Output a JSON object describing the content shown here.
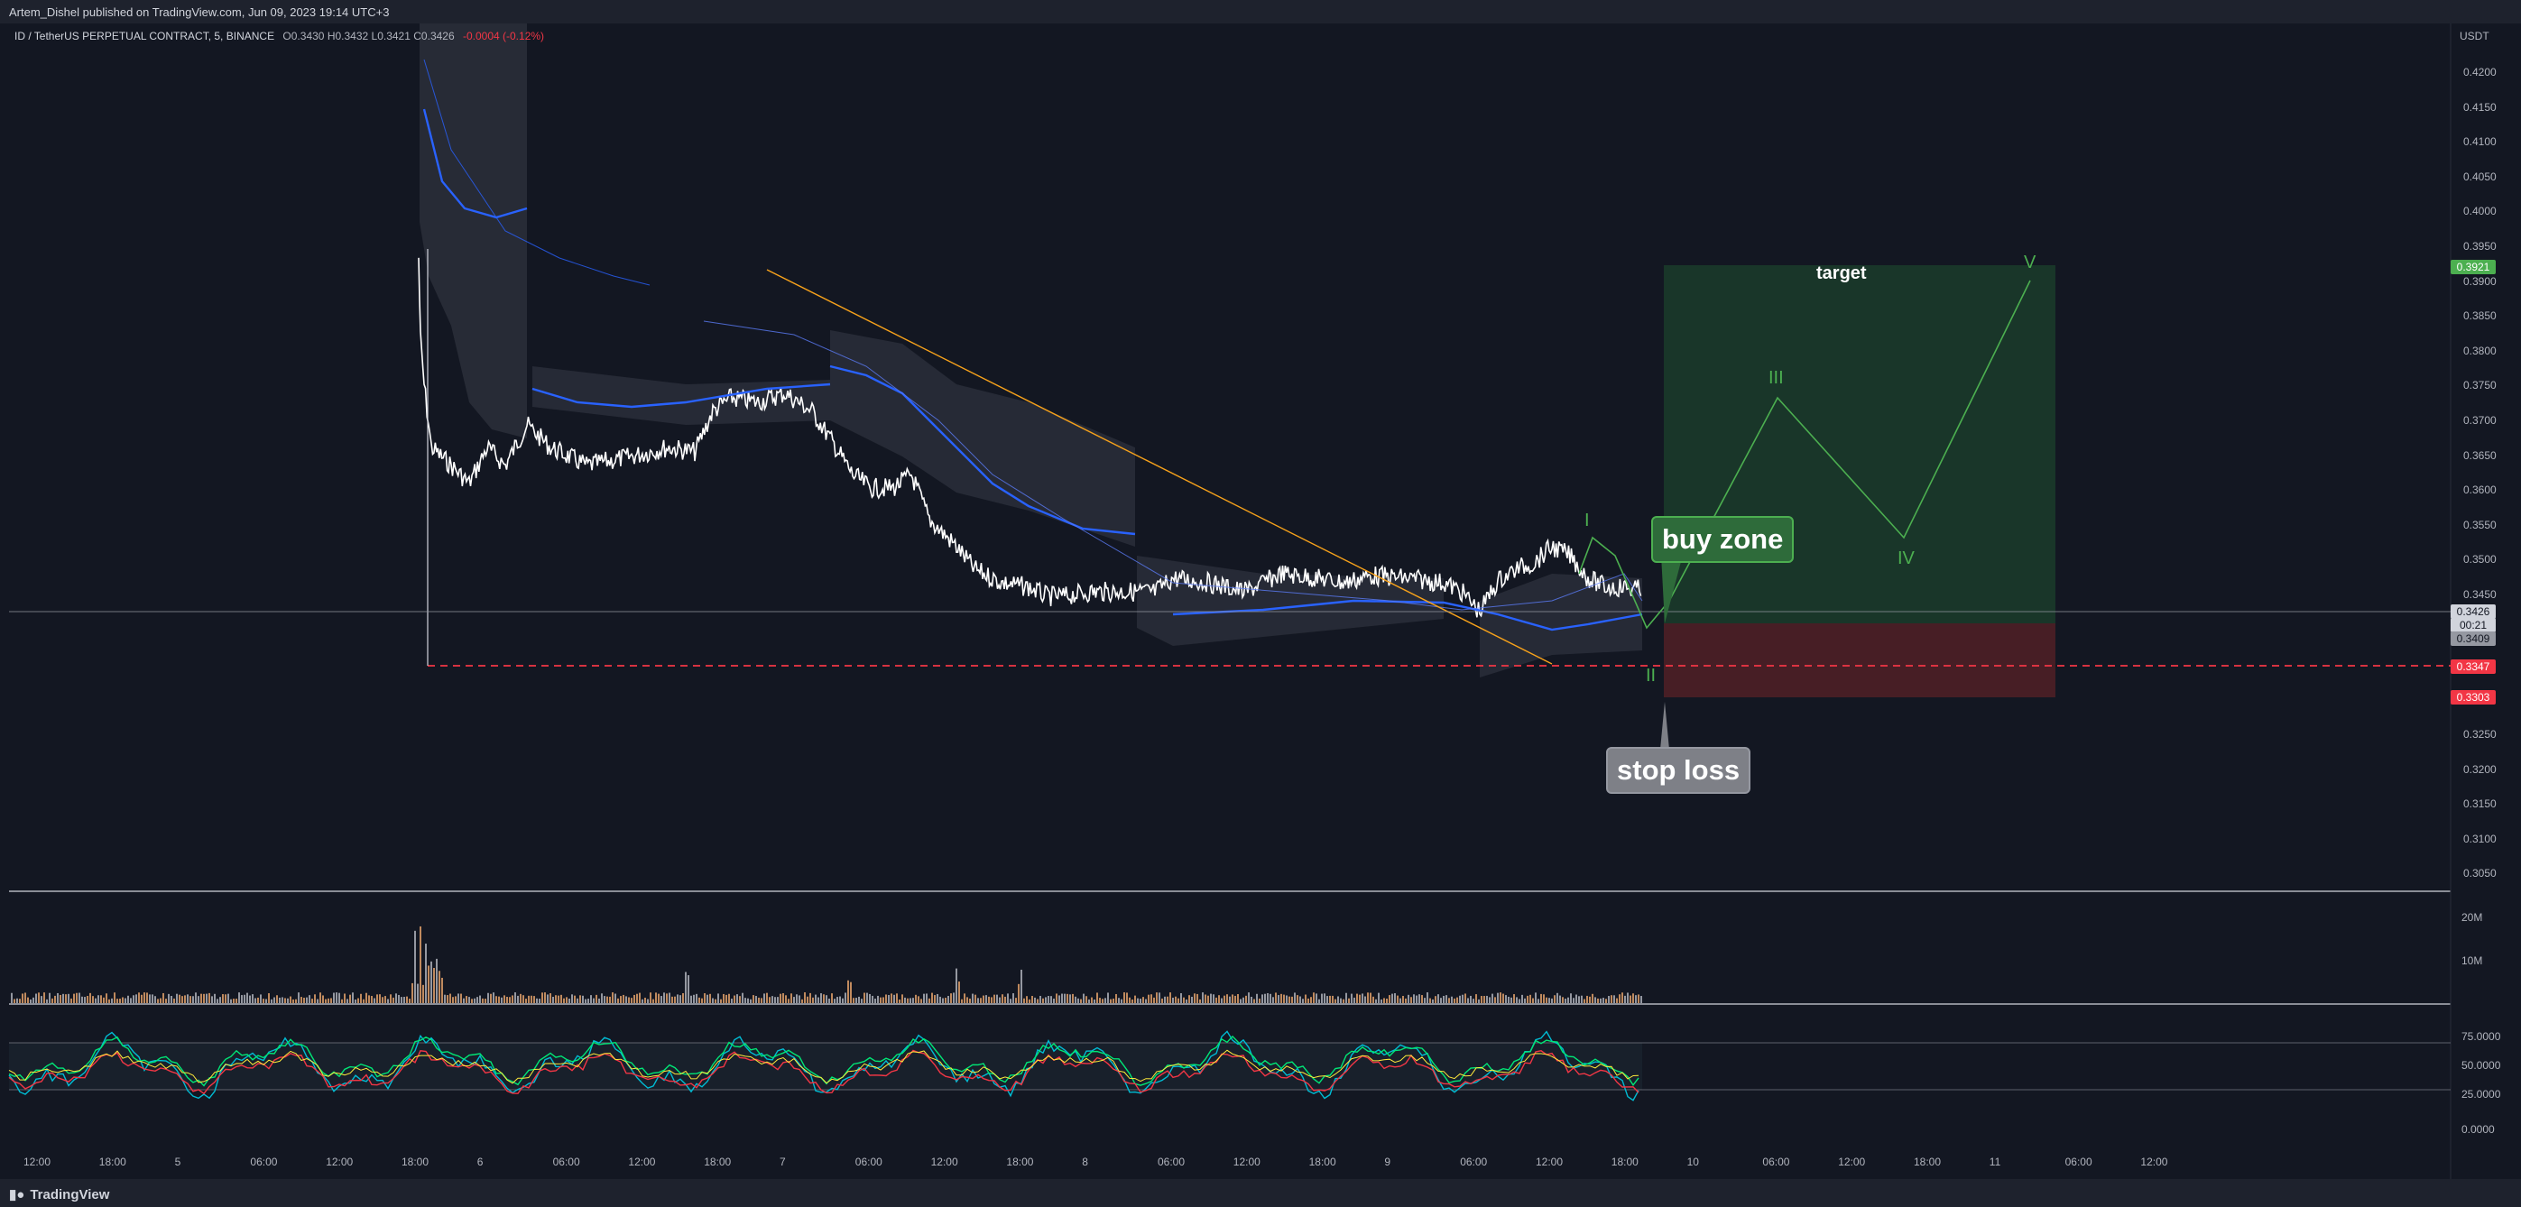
{
  "header": {
    "publisher": "Artem_Dishel published on TradingView.com, Jun 09, 2023 19:14 UTC+3"
  },
  "legend": {
    "symbol": "ID / TetherUS PERPETUAL CONTRACT, 5, BINANCE",
    "open": "O0.3430",
    "high": "H0.3432",
    "low": "L0.3421",
    "close": "C0.3426",
    "change": "-0.0004 (-0.12%)"
  },
  "price_axis": {
    "unit": "USDT",
    "ticks": [
      "0.4200",
      "0.4150",
      "0.4100",
      "0.4050",
      "0.4000",
      "0.3950",
      "0.3900",
      "0.3850",
      "0.3800",
      "0.3750",
      "0.3700",
      "0.3650",
      "0.3600",
      "0.3550",
      "0.3500",
      "0.3450",
      "0.3250",
      "0.3200",
      "0.3150",
      "0.3100",
      "0.3050"
    ]
  },
  "price_tags": {
    "target": "0.3921",
    "last": "0.3426",
    "countdown": "00:21",
    "ma": "0.3409",
    "support": "0.3347",
    "stop": "0.3303"
  },
  "volume_axis": {
    "ticks": [
      "20M",
      "10M"
    ]
  },
  "osc_axis": {
    "ticks": [
      "75.0000",
      "50.0000",
      "25.0000",
      "0.0000"
    ]
  },
  "time_axis": {
    "ticks": [
      "12:00",
      "18:00",
      "5",
      "06:00",
      "12:00",
      "18:00",
      "6",
      "06:00",
      "12:00",
      "18:00",
      "7",
      "06:00",
      "12:00",
      "18:00",
      "8",
      "06:00",
      "12:00",
      "18:00",
      "9",
      "06:00",
      "12:00",
      "18:00",
      "10",
      "06:00",
      "12:00",
      "18:00",
      "11",
      "06:00",
      "12:00"
    ]
  },
  "annotations": {
    "buy_zone": "buy zone",
    "stop_loss": "stop loss",
    "target": "target",
    "waves": [
      "I",
      "II",
      "III",
      "IV",
      "V"
    ]
  },
  "colors": {
    "background": "#131722",
    "candles": "#ffffff",
    "ma": "#2962ff",
    "trendline": "#f7a21b",
    "support": "#f23645",
    "target_zone": "#1b3a2a",
    "stop_zone": "#4a1f26",
    "wave": "#4caf50"
  },
  "footer": {
    "brand": "TradingView"
  }
}
